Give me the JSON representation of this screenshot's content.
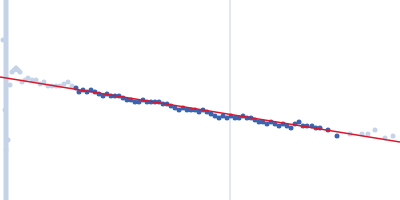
{
  "chart_data": {
    "type": "scatter",
    "xlim": [
      0,
      400
    ],
    "ylim": [
      0,
      200
    ],
    "xticks": [],
    "yticks": [],
    "tick_labels": false,
    "grid": false,
    "series": [
      {
        "type": "line",
        "color": "#c5d3e8",
        "line_style": "thick",
        "x": [
          6,
          6
        ],
        "values": [
          0,
          200
        ]
      },
      {
        "type": "line",
        "color": "#c8d2e2",
        "line_style": "thin",
        "x": [
          230,
          230
        ],
        "values": [
          0,
          200
        ]
      },
      {
        "type": "scatter",
        "color": "#c5d3e8",
        "marker": "circle",
        "x": [
          3,
          5,
          6,
          8,
          10,
          12,
          14,
          16,
          18,
          20,
          22,
          25,
          28,
          32,
          36,
          40,
          44,
          48,
          52,
          56,
          60,
          64,
          68,
          72
        ],
        "values": [
          160,
          90,
          50,
          60,
          115,
          128,
          130,
          132,
          130,
          128,
          118,
          120,
          122,
          120,
          120,
          116,
          118,
          114,
          114,
          114,
          114,
          116,
          118,
          114
        ]
      },
      {
        "type": "scatter",
        "color": "#3a63b0",
        "marker": "circle",
        "x": [
          76,
          79,
          83,
          87,
          91,
          95,
          99,
          103,
          107,
          111,
          115,
          119,
          123,
          127,
          131,
          135,
          139,
          143,
          147,
          151,
          155,
          159,
          163,
          167,
          171,
          175,
          179,
          183,
          187,
          191,
          195,
          199,
          203,
          207,
          211,
          215,
          219,
          223,
          227,
          231,
          235,
          239,
          243,
          247,
          251,
          255,
          259,
          263,
          267,
          271,
          275,
          279,
          283,
          287,
          291,
          295,
          299,
          303,
          307,
          312,
          316,
          320,
          328,
          337
        ],
        "values": [
          112,
          108,
          110,
          108,
          110,
          108,
          106,
          104,
          106,
          104,
          104,
          104,
          102,
          100,
          100,
          98,
          98,
          100,
          98,
          98,
          98,
          98,
          96,
          96,
          94,
          92,
          90,
          92,
          90,
          90,
          90,
          88,
          90,
          88,
          86,
          84,
          82,
          84,
          82,
          84,
          82,
          82,
          84,
          82,
          82,
          80,
          78,
          78,
          76,
          78,
          76,
          74,
          76,
          74,
          72,
          76,
          78,
          74,
          74,
          74,
          72,
          72,
          70,
          64
        ]
      },
      {
        "type": "scatter",
        "color": "#c5d3e8",
        "marker": "circle",
        "x": [
          350,
          362,
          368,
          375,
          385,
          393
        ],
        "values": [
          66,
          66,
          66,
          70,
          62,
          64
        ]
      },
      {
        "type": "line",
        "color": "#d9182d",
        "line_style": "solid",
        "x": [
          0,
          400
        ],
        "values": [
          123,
          58
        ]
      }
    ]
  }
}
